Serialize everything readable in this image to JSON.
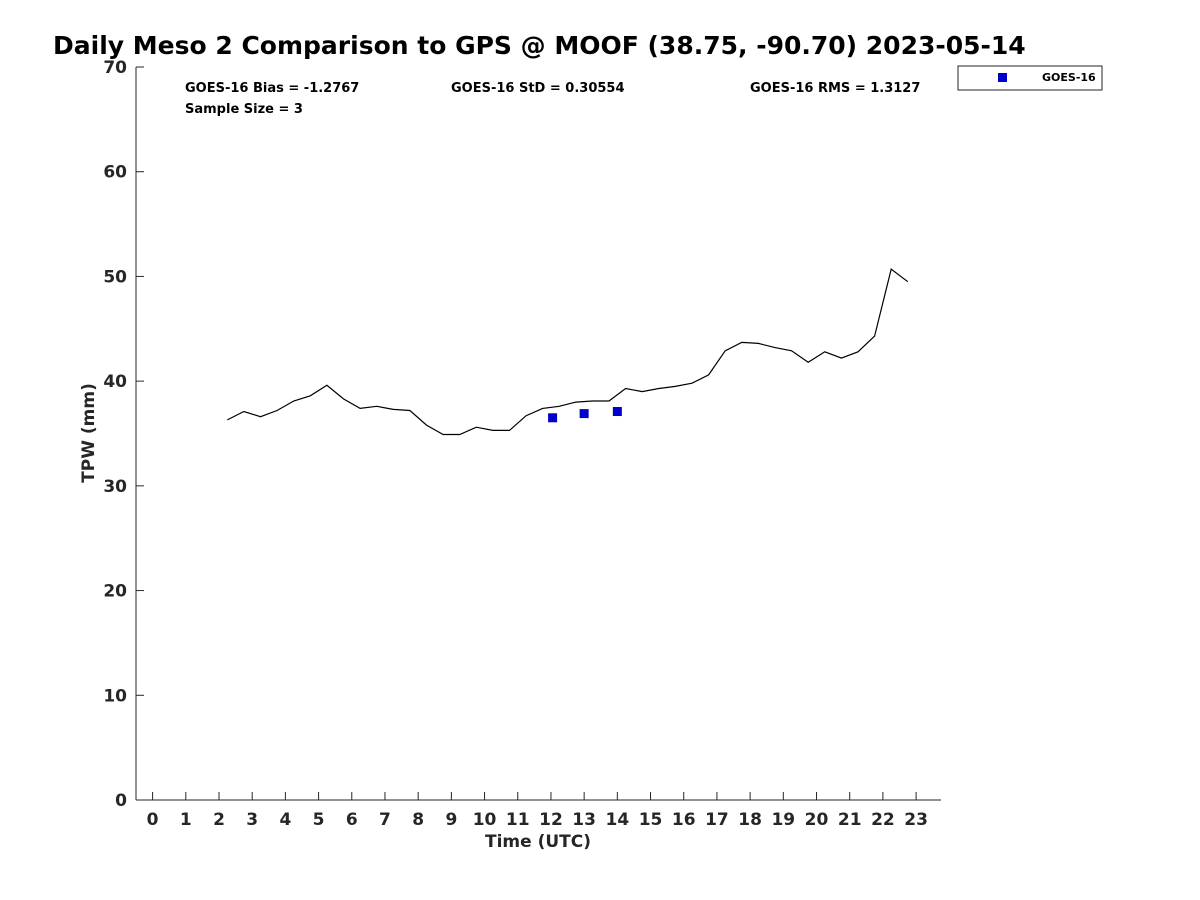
{
  "chart_data": {
    "type": "line",
    "title": "Daily Meso 2 Comparison to GPS @ MOOF (38.75, -90.70) 2023-05-14",
    "xlabel": "Time (UTC)",
    "ylabel": "TPW (mm)",
    "xlim": [
      -0.5,
      23.75
    ],
    "ylim": [
      0,
      70
    ],
    "xticks": [
      0,
      1,
      2,
      3,
      4,
      5,
      6,
      7,
      8,
      9,
      10,
      11,
      12,
      13,
      14,
      15,
      16,
      17,
      18,
      19,
      20,
      21,
      22,
      23
    ],
    "yticks": [
      0,
      10,
      20,
      30,
      40,
      50,
      60,
      70
    ],
    "grid": false,
    "legend_position": "top-right-outside",
    "stats": {
      "bias": "GOES-16 Bias = -1.2767",
      "std": "GOES-16 StD = 0.30554",
      "rms": "GOES-16 RMS = 1.3127",
      "sample": "Sample Size = 3"
    },
    "series": [
      {
        "kind": "line",
        "color": "#000000",
        "x": [
          2.25,
          2.75,
          3.25,
          3.75,
          4.25,
          4.75,
          5.25,
          5.75,
          6.25,
          6.75,
          7.25,
          7.75,
          8.25,
          8.75,
          9.25,
          9.75,
          10.25,
          10.75,
          11.25,
          11.75,
          12.25,
          12.75,
          13.25,
          13.75,
          14.25,
          14.75,
          15.25,
          15.75,
          16.25,
          16.75,
          17.25,
          17.75,
          18.25,
          18.75,
          19.25,
          19.75,
          20.25,
          20.75,
          21.25,
          21.75,
          22.25,
          22.75
        ],
        "y": [
          36.3,
          37.1,
          36.6,
          37.2,
          38.1,
          38.6,
          39.6,
          38.3,
          37.4,
          37.6,
          37.3,
          37.2,
          35.8,
          34.9,
          34.9,
          35.6,
          35.3,
          35.3,
          36.7,
          37.4,
          37.6,
          38.0,
          38.1,
          38.1,
          39.3,
          39.0,
          39.3,
          39.5,
          39.8,
          40.6,
          42.9,
          43.7,
          43.6,
          43.2,
          42.9,
          41.8,
          42.8,
          42.2,
          42.8,
          44.3,
          50.7,
          49.5
        ]
      },
      {
        "kind": "scatter",
        "name": "GOES-16",
        "color": "#0000cc",
        "x": [
          12.05,
          13.0,
          14.0
        ],
        "y": [
          36.5,
          36.9,
          37.1
        ]
      }
    ]
  }
}
